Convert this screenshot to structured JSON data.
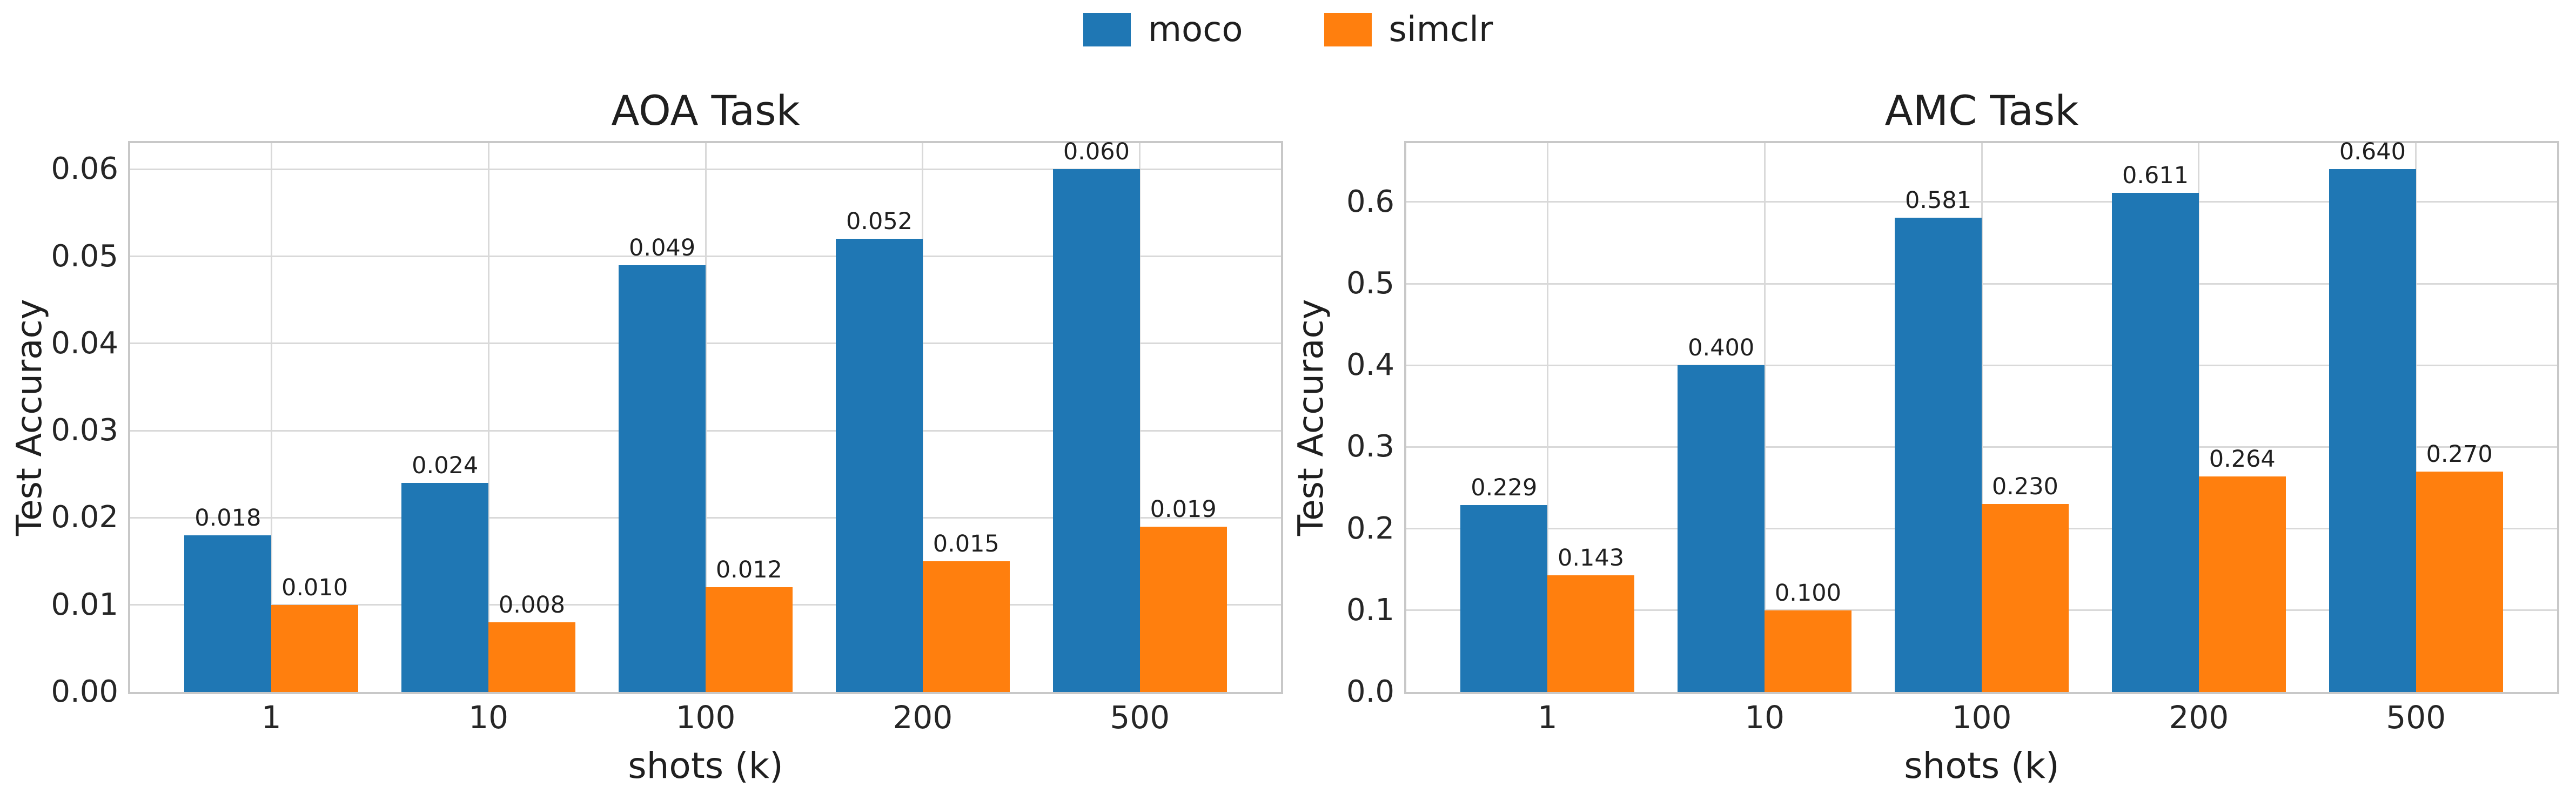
{
  "figure": {
    "background": "#ffffff"
  },
  "legend": {
    "position": "upper center",
    "items": [
      {
        "label": "moco",
        "color": "#1f77b4"
      },
      {
        "label": "simclr",
        "color": "#ff7f0e"
      }
    ]
  },
  "chart_data": [
    {
      "type": "bar",
      "title": "AOA Task",
      "xlabel": "shots (k)",
      "ylabel": "Test Accuracy",
      "categories": [
        "1",
        "10",
        "100",
        "200",
        "500"
      ],
      "series": [
        {
          "name": "moco",
          "color": "#1f77b4",
          "values": [
            0.018,
            0.024,
            0.049,
            0.052,
            0.06
          ],
          "labels": [
            "0.018",
            "0.024",
            "0.049",
            "0.052",
            "0.060"
          ]
        },
        {
          "name": "simclr",
          "color": "#ff7f0e",
          "values": [
            0.01,
            0.008,
            0.012,
            0.015,
            0.019
          ],
          "labels": [
            "0.010",
            "0.008",
            "0.012",
            "0.015",
            "0.019"
          ]
        }
      ],
      "ylim": [
        0,
        0.063
      ],
      "yticks": [
        {
          "value": 0.0,
          "label": "0.00"
        },
        {
          "value": 0.01,
          "label": "0.01"
        },
        {
          "value": 0.02,
          "label": "0.02"
        },
        {
          "value": 0.03,
          "label": "0.03"
        },
        {
          "value": 0.04,
          "label": "0.04"
        },
        {
          "value": 0.05,
          "label": "0.05"
        },
        {
          "value": 0.06,
          "label": "0.06"
        }
      ],
      "grid": true,
      "legend_position": "figure upper center"
    },
    {
      "type": "bar",
      "title": "AMC Task",
      "xlabel": "shots (k)",
      "ylabel": "Test Accuracy",
      "categories": [
        "1",
        "10",
        "100",
        "200",
        "500"
      ],
      "series": [
        {
          "name": "moco",
          "color": "#1f77b4",
          "values": [
            0.229,
            0.4,
            0.581,
            0.611,
            0.64
          ],
          "labels": [
            "0.229",
            "0.400",
            "0.581",
            "0.611",
            "0.640"
          ]
        },
        {
          "name": "simclr",
          "color": "#ff7f0e",
          "values": [
            0.143,
            0.1,
            0.23,
            0.264,
            0.27
          ],
          "labels": [
            "0.143",
            "0.100",
            "0.230",
            "0.264",
            "0.270"
          ]
        }
      ],
      "ylim": [
        0,
        0.672
      ],
      "yticks": [
        {
          "value": 0.0,
          "label": "0.0"
        },
        {
          "value": 0.1,
          "label": "0.1"
        },
        {
          "value": 0.2,
          "label": "0.2"
        },
        {
          "value": 0.3,
          "label": "0.3"
        },
        {
          "value": 0.4,
          "label": "0.4"
        },
        {
          "value": 0.5,
          "label": "0.5"
        },
        {
          "value": 0.6,
          "label": "0.6"
        }
      ],
      "grid": true,
      "legend_position": "figure upper center"
    }
  ]
}
